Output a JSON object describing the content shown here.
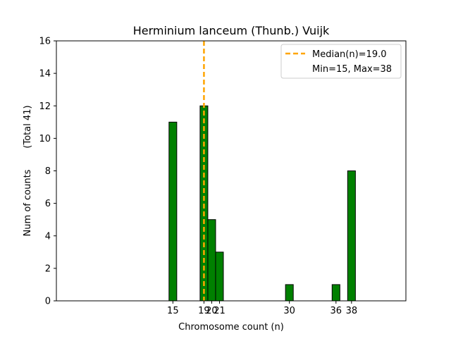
{
  "chart_data": {
    "type": "bar",
    "title": "Herminium lanceum (Thunb.) Vuijk",
    "xlabel": "Chromosome count (n)",
    "ylabel": "Num of counts",
    "ylabel_secondary": "(Total 41)",
    "xlim": [
      0,
      45
    ],
    "ylim": [
      0,
      16
    ],
    "yticks": [
      0,
      2,
      4,
      6,
      8,
      10,
      12,
      14,
      16
    ],
    "xticks": [
      15,
      19,
      20,
      21,
      30,
      36,
      38
    ],
    "xtick_labels": [
      "15",
      "19",
      "20",
      "21",
      "30",
      "36",
      "38"
    ],
    "bars": [
      {
        "x": 15,
        "value": 11
      },
      {
        "x": 19,
        "value": 12
      },
      {
        "x": 20,
        "value": 5
      },
      {
        "x": 21,
        "value": 3
      },
      {
        "x": 30,
        "value": 1
      },
      {
        "x": 36,
        "value": 1
      },
      {
        "x": 38,
        "value": 8
      }
    ],
    "bar_color": "#008000",
    "median_line": {
      "x": 19.0,
      "color": "#FFA500"
    },
    "legend": {
      "position": "upper right",
      "entries": [
        "Median(n)=19.0",
        "Min=15, Max=38"
      ]
    },
    "grid": false
  }
}
